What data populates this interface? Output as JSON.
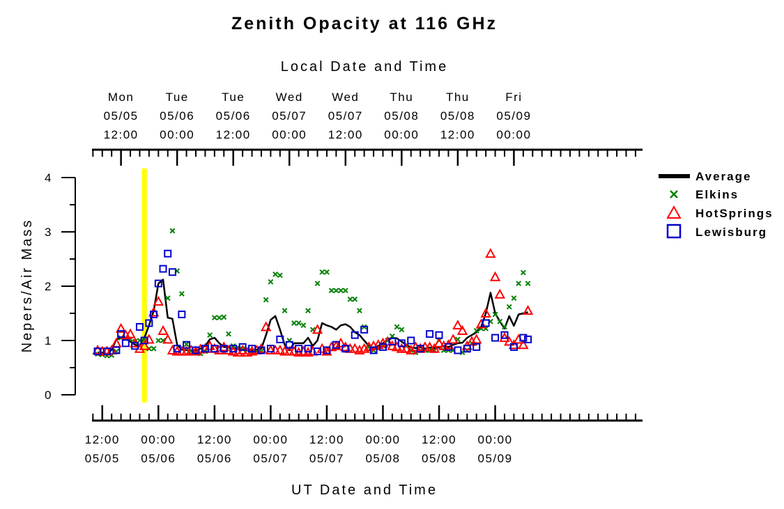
{
  "chart_data": {
    "type": "scatter",
    "title": "Zenith Opacity at 116 GHz",
    "ylabel": "Nepers/Air Mass",
    "xlabel_bottom": "UT Date and Time",
    "xlabel_top": "Local Date and Time",
    "ylim": [
      0,
      4
    ],
    "y_ticks": [
      "0",
      "1",
      "2",
      "3",
      "4"
    ],
    "xlim_hours": [
      -2.2,
      115.5
    ],
    "bottom_ticks": [
      {
        "h": 0,
        "time": "12:00",
        "date": "05/05"
      },
      {
        "h": 12,
        "time": "00:00",
        "date": "05/06"
      },
      {
        "h": 24,
        "time": "12:00",
        "date": "05/06"
      },
      {
        "h": 36,
        "time": "00:00",
        "date": "05/07"
      },
      {
        "h": 48,
        "time": "12:00",
        "date": "05/07"
      },
      {
        "h": 60,
        "time": "00:00",
        "date": "05/08"
      },
      {
        "h": 72,
        "time": "12:00",
        "date": "05/08"
      },
      {
        "h": 84,
        "time": "00:00",
        "date": "05/09"
      }
    ],
    "top_ticks": [
      {
        "h": 4,
        "day": "Mon",
        "date": "05/05",
        "time": "12:00"
      },
      {
        "h": 16,
        "day": "Tue",
        "date": "05/06",
        "time": "00:00"
      },
      {
        "h": 28,
        "day": "Tue",
        "date": "05/06",
        "time": "12:00"
      },
      {
        "h": 40,
        "day": "Wed",
        "date": "05/07",
        "time": "00:00"
      },
      {
        "h": 52,
        "day": "Wed",
        "date": "05/07",
        "time": "12:00"
      },
      {
        "h": 64,
        "day": "Thu",
        "date": "05/08",
        "time": "00:00"
      },
      {
        "h": 76,
        "day": "Thu",
        "date": "05/08",
        "time": "12:00"
      },
      {
        "h": 88,
        "day": "Fri",
        "date": "05/09",
        "time": "00:00"
      }
    ],
    "marker_line_h": 9.0,
    "colors": {
      "average": "#000000",
      "elkins": "#008000",
      "hotsprings": "#ff0000",
      "lewisburg": "#0000cc",
      "marker": "#ffff00"
    },
    "legend_position": "right",
    "series": [
      {
        "name": "Average",
        "style": "line",
        "color": "#000000",
        "x": [
          -1,
          0,
          1,
          2,
          3,
          4,
          5,
          6,
          7,
          8,
          9,
          10,
          11,
          12,
          13,
          14,
          15,
          16,
          17,
          18,
          19,
          20,
          21,
          22,
          23,
          24,
          25,
          26,
          27,
          28,
          29,
          30,
          31,
          32,
          33,
          34,
          35,
          36,
          37,
          38,
          39,
          40,
          41,
          42,
          43,
          44,
          45,
          46,
          47,
          48,
          49,
          50,
          51,
          52,
          53,
          54,
          55,
          56,
          57,
          58,
          59,
          60,
          61,
          62,
          63,
          64,
          65,
          66,
          67,
          68,
          69,
          70,
          71,
          72,
          73,
          74,
          75,
          76,
          77,
          78,
          79,
          80,
          81,
          82,
          83,
          84,
          85,
          86,
          87,
          88,
          89,
          90,
          91
        ],
        "y": [
          0.78,
          0.78,
          0.75,
          0.83,
          1.02,
          1.05,
          1.05,
          0.98,
          0.92,
          0.9,
          1.05,
          1.28,
          1.55,
          2.05,
          2.12,
          1.42,
          1.4,
          0.92,
          0.83,
          0.82,
          0.82,
          0.82,
          0.85,
          0.9,
          1.02,
          1.05,
          0.95,
          0.88,
          0.87,
          0.85,
          0.85,
          0.84,
          0.83,
          0.82,
          0.83,
          0.85,
          1.1,
          1.38,
          1.45,
          1.2,
          0.92,
          0.82,
          0.95,
          0.95,
          0.95,
          1.05,
          0.9,
          1.0,
          1.32,
          1.28,
          1.25,
          1.2,
          1.28,
          1.3,
          1.25,
          1.15,
          1.1,
          1.0,
          0.9,
          0.86,
          0.9,
          0.95,
          1.0,
          1.05,
          1.04,
          0.98,
          0.92,
          0.87,
          0.86,
          0.88,
          0.85,
          0.87,
          0.86,
          0.87,
          0.9,
          0.88,
          0.92,
          0.95,
          0.96,
          1.05,
          1.1,
          1.15,
          1.25,
          1.5,
          1.88,
          1.5,
          1.35,
          1.22,
          1.45,
          1.27,
          1.48,
          1.5,
          1.52
        ]
      },
      {
        "name": "Elkins",
        "style": "x",
        "color": "#008000",
        "x": [
          -1,
          0,
          1,
          2,
          3,
          4,
          5,
          6,
          7,
          8,
          9,
          10,
          11,
          12,
          13,
          14,
          15,
          16,
          17,
          18,
          19,
          20,
          21,
          22,
          23,
          24,
          25,
          26,
          27,
          28,
          29,
          30,
          31,
          32,
          33,
          34,
          35,
          36,
          37,
          38,
          39,
          40,
          41,
          42,
          43,
          44,
          45,
          46,
          47,
          48,
          49,
          50,
          51,
          52,
          53,
          54,
          55,
          56,
          57,
          58,
          59,
          60,
          61,
          62,
          63,
          64,
          65,
          66,
          67,
          68,
          69,
          70,
          71,
          72,
          73,
          74,
          75,
          76,
          77,
          78,
          79,
          80,
          81,
          82,
          83,
          84,
          85,
          86,
          87,
          88,
          89,
          90,
          91
        ],
        "y": [
          0.75,
          0.74,
          0.72,
          0.73,
          0.8,
          1.05,
          1.05,
          1.02,
          0.98,
          1.0,
          1.02,
          0.85,
          0.85,
          1.0,
          1.0,
          1.78,
          3.02,
          2.28,
          1.86,
          0.93,
          0.8,
          0.78,
          0.76,
          0.8,
          1.1,
          1.42,
          1.42,
          1.43,
          1.12,
          0.9,
          0.87,
          0.84,
          0.82,
          0.78,
          0.8,
          0.8,
          1.75,
          2.08,
          2.22,
          2.2,
          1.55,
          1.0,
          1.32,
          1.32,
          1.28,
          1.55,
          1.2,
          2.05,
          2.26,
          2.26,
          1.92,
          1.92,
          1.92,
          1.92,
          1.76,
          1.76,
          1.55,
          1.25,
          0.88,
          0.82,
          0.86,
          0.9,
          1.0,
          1.08,
          1.25,
          1.2,
          0.9,
          0.82,
          0.78,
          0.82,
          0.82,
          0.82,
          0.82,
          1.0,
          0.82,
          0.82,
          0.82,
          1.02,
          0.78,
          0.82,
          0.95,
          1.18,
          1.22,
          1.22,
          1.35,
          1.48,
          1.35,
          1.25,
          1.62,
          1.78,
          2.05,
          2.25,
          2.05
        ]
      },
      {
        "name": "HotSprings",
        "style": "triangle",
        "color": "#ff0000",
        "x": [
          -1,
          0,
          1,
          2,
          3,
          4,
          5,
          6,
          7,
          8,
          9,
          10,
          11,
          12,
          13,
          14,
          15,
          16,
          17,
          18,
          19,
          20,
          21,
          22,
          23,
          24,
          25,
          26,
          27,
          28,
          29,
          30,
          31,
          32,
          33,
          34,
          35,
          36,
          37,
          38,
          39,
          40,
          41,
          42,
          43,
          44,
          45,
          46,
          47,
          48,
          49,
          50,
          51,
          52,
          53,
          54,
          55,
          56,
          57,
          58,
          59,
          60,
          61,
          62,
          63,
          64,
          65,
          66,
          67,
          68,
          69,
          70,
          71,
          72,
          73,
          74,
          75,
          76,
          77,
          78,
          79,
          80,
          81,
          82,
          83,
          84,
          85,
          86,
          87,
          88,
          89,
          90,
          91
        ],
        "y": [
          0.82,
          0.8,
          0.8,
          0.82,
          0.95,
          1.22,
          1.1,
          1.12,
          0.95,
          0.85,
          0.9,
          1.02,
          1.52,
          1.72,
          1.18,
          1.02,
          0.82,
          0.8,
          0.8,
          0.8,
          0.82,
          0.8,
          0.84,
          0.85,
          0.9,
          0.85,
          0.82,
          0.88,
          0.82,
          0.8,
          0.78,
          0.82,
          0.78,
          0.8,
          0.82,
          0.85,
          1.25,
          0.82,
          0.82,
          0.82,
          0.8,
          0.8,
          0.8,
          0.78,
          0.8,
          0.78,
          0.8,
          1.2,
          0.85,
          0.8,
          0.88,
          0.9,
          0.95,
          0.88,
          0.85,
          0.85,
          0.82,
          0.85,
          0.88,
          0.9,
          0.92,
          0.95,
          0.98,
          0.9,
          0.88,
          0.85,
          0.85,
          0.82,
          0.88,
          0.85,
          0.88,
          0.88,
          0.85,
          0.95,
          0.9,
          0.92,
          1.02,
          1.28,
          1.18,
          0.9,
          0.98,
          1.02,
          1.3,
          1.5,
          2.6,
          2.17,
          1.85,
          1.05,
          0.98,
          0.92,
          1.02,
          0.92,
          1.55
        ]
      },
      {
        "name": "Lewisburg",
        "style": "square",
        "color": "#0000cc",
        "x": [
          -1,
          1,
          3,
          4,
          5,
          7,
          8,
          9,
          10,
          11,
          12,
          13,
          14,
          15,
          16,
          17,
          18,
          20,
          22,
          24,
          26,
          28,
          30,
          32,
          34,
          36,
          38,
          40,
          42,
          44,
          46,
          48,
          50,
          52,
          54,
          56,
          58,
          60,
          62,
          64,
          66,
          68,
          70,
          72,
          74,
          76,
          78,
          80,
          82,
          84,
          86,
          88,
          90,
          91
        ],
        "y": [
          0.8,
          0.8,
          0.82,
          1.12,
          0.95,
          0.9,
          1.25,
          1.0,
          1.32,
          1.48,
          2.05,
          2.32,
          2.6,
          2.26,
          0.85,
          1.48,
          0.92,
          0.82,
          0.85,
          0.85,
          0.85,
          0.85,
          0.88,
          0.85,
          0.82,
          0.85,
          1.02,
          0.92,
          0.85,
          0.85,
          0.8,
          0.82,
          0.92,
          0.85,
          1.1,
          1.2,
          0.82,
          0.88,
          0.98,
          0.95,
          1.0,
          0.85,
          1.12,
          1.1,
          0.88,
          0.82,
          0.85,
          0.88,
          1.32,
          1.05,
          1.1,
          0.88,
          1.05,
          1.02
        ]
      }
    ]
  }
}
